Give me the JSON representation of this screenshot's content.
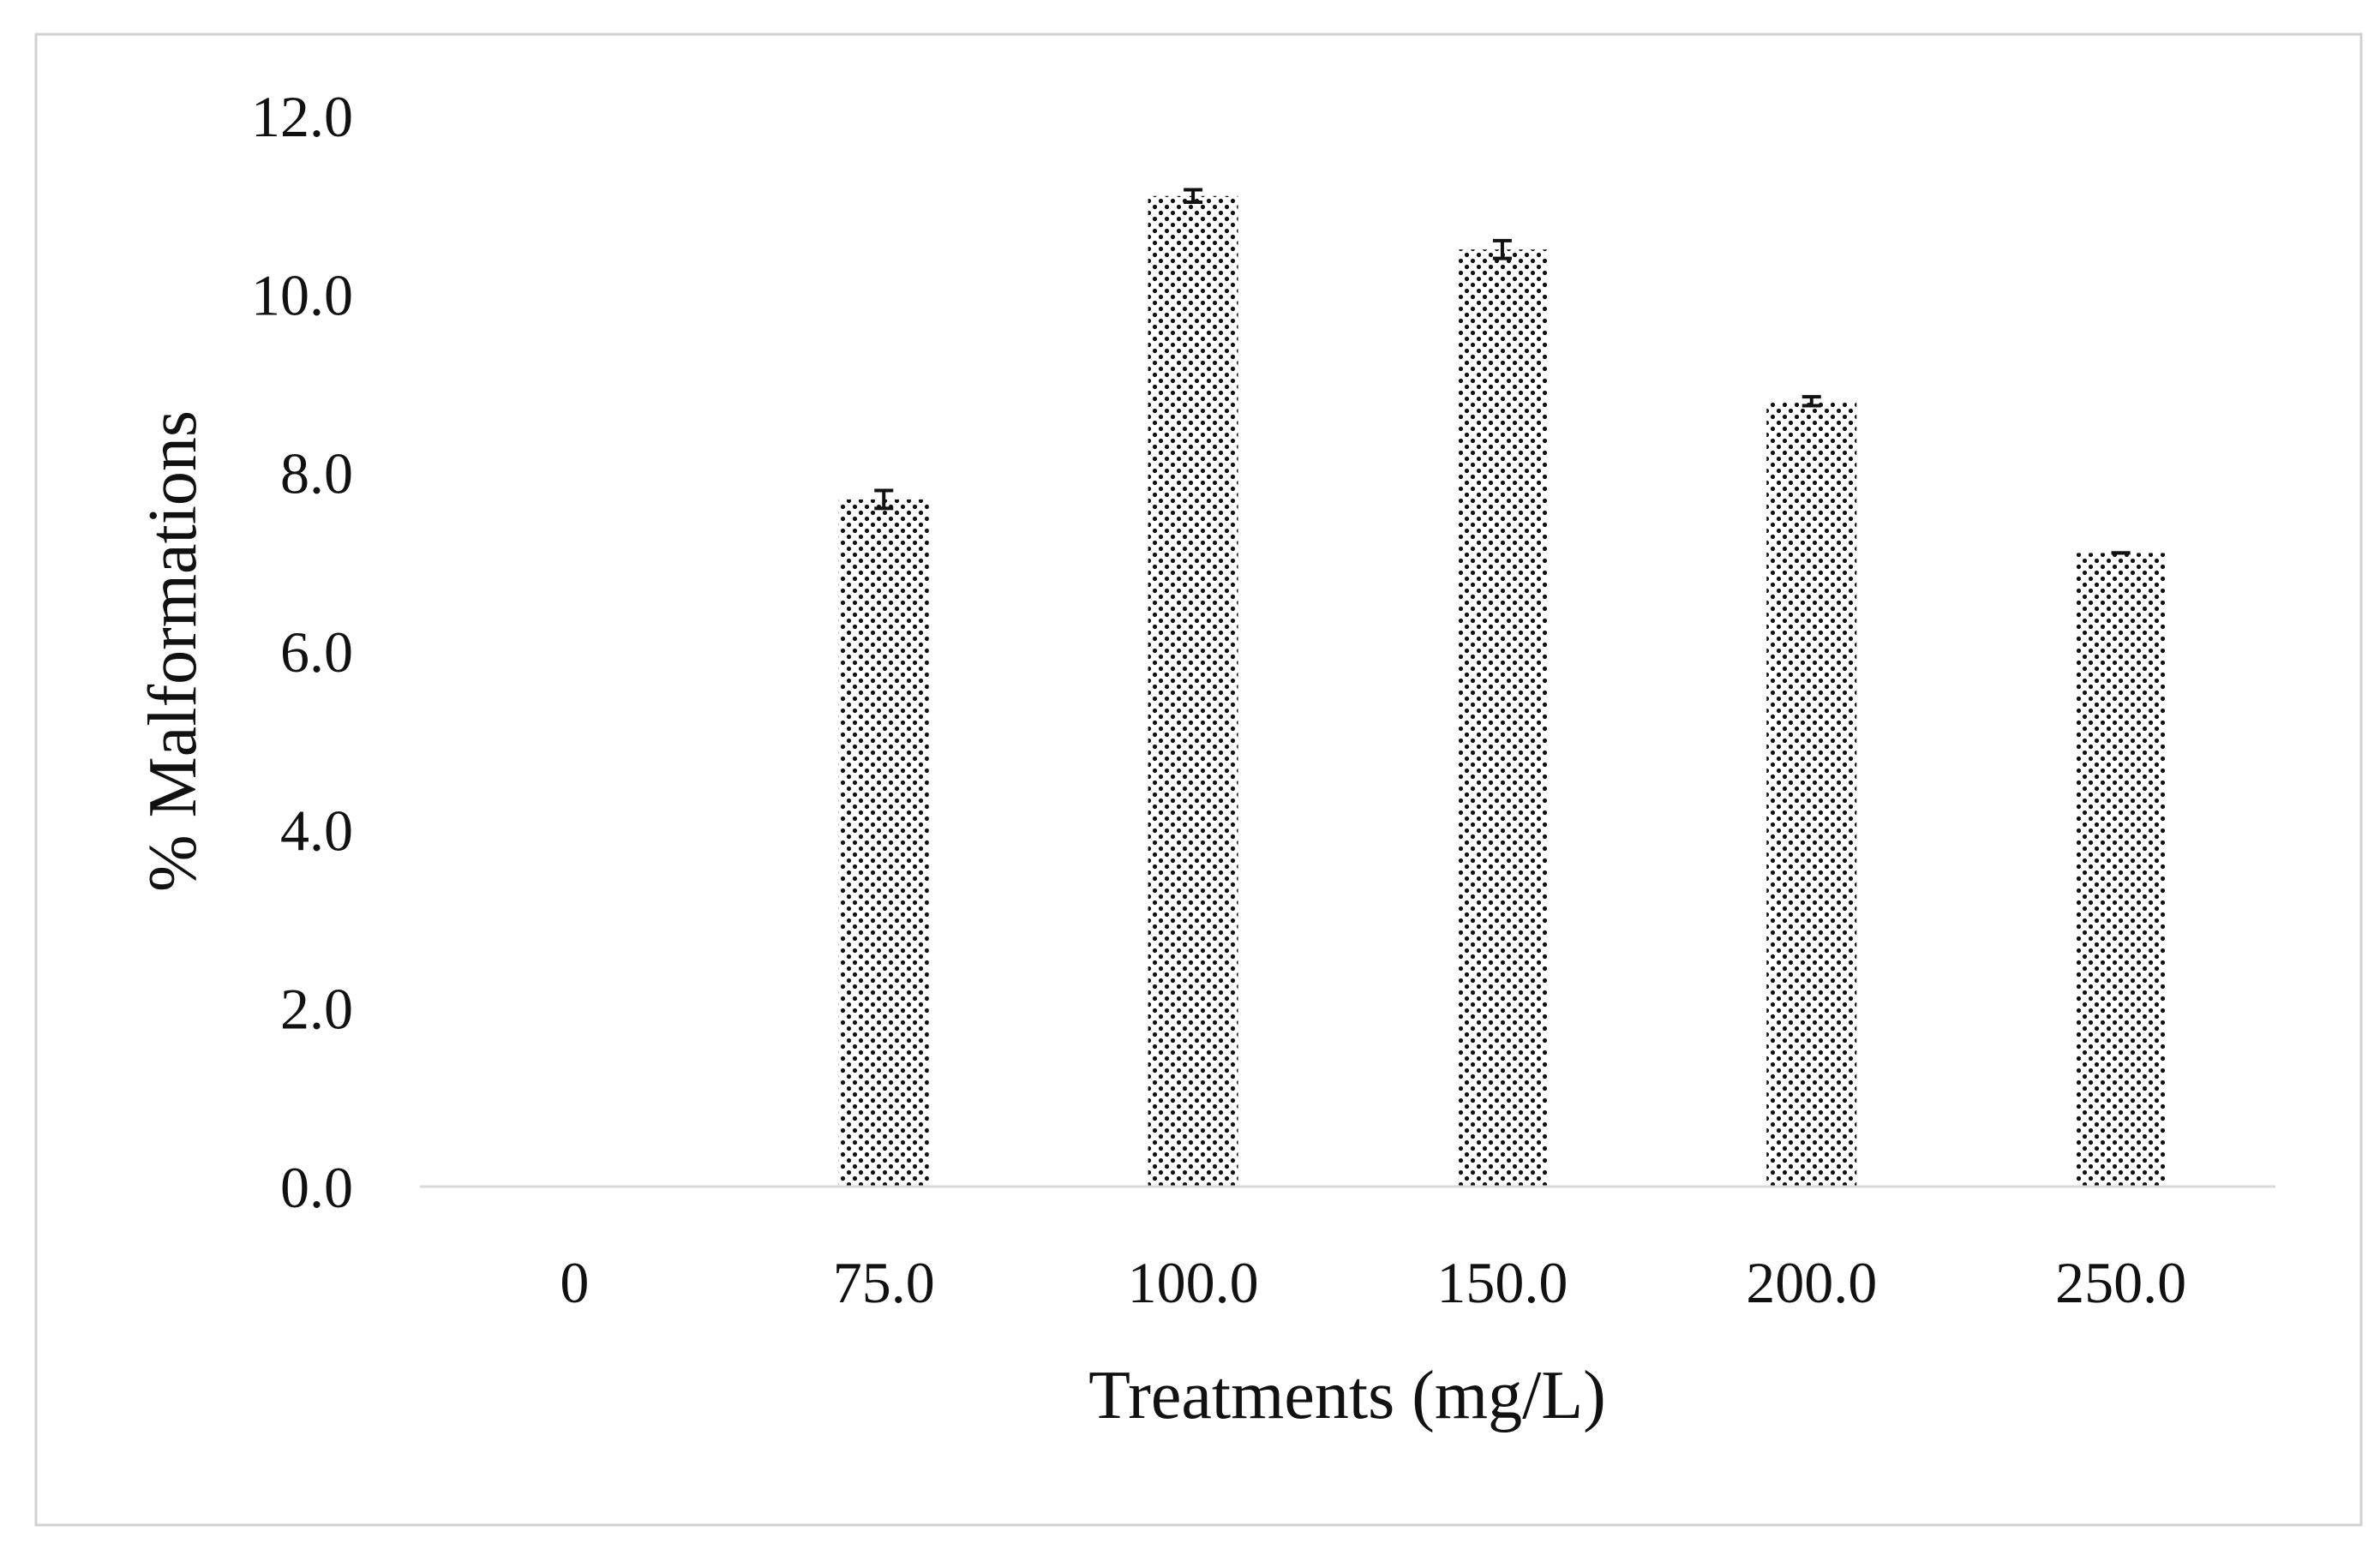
{
  "chart_data": {
    "type": "bar",
    "title": "",
    "xlabel": "Treatments (mg/L)",
    "ylabel": "% Malformations",
    "categories": [
      "0",
      "75.0",
      "100.0",
      "150.0",
      "200.0",
      "250.0"
    ],
    "values": [
      0.0,
      7.7,
      11.1,
      10.5,
      8.8,
      7.1
    ],
    "errors": [
      0.0,
      0.1,
      0.07,
      0.1,
      0.05,
      0.0
    ],
    "ylim": [
      0,
      12
    ],
    "yticks": [
      "0.0",
      "2.0",
      "4.0",
      "6.0",
      "8.0",
      "10.0",
      "12.0"
    ],
    "grid": false,
    "legend": "none",
    "bar_pattern": "dotted",
    "colors": {
      "frame": "#d0d0d0",
      "axis": "#d9d9d9",
      "dots": "#111111",
      "text": "#111111"
    }
  }
}
